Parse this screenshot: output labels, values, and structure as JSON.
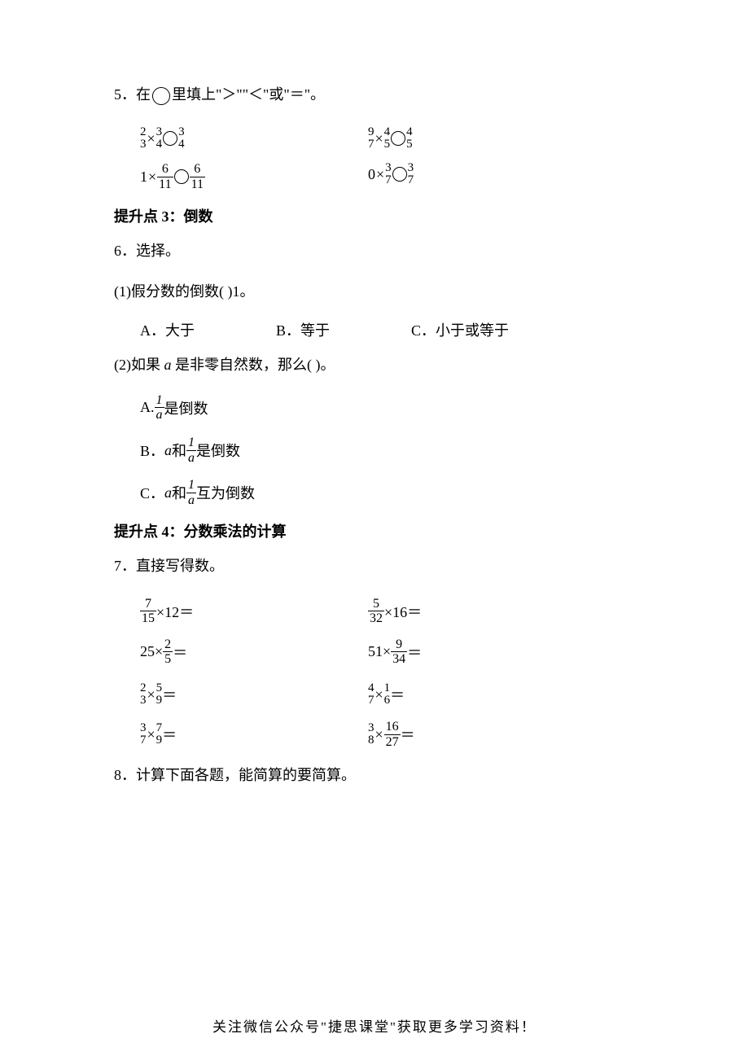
{
  "q5": {
    "number": "5．",
    "text": "在",
    "text2": "里填上\"＞\"\"＜\"或\"＝\"。",
    "items": [
      {
        "left_num": "2",
        "left_den": "3",
        "op": "×",
        "mid_num": "3",
        "mid_den": "4",
        "right_num": "3",
        "right_den": "4"
      },
      {
        "left_num": "9",
        "left_den": "7",
        "op": "×",
        "mid_num": "4",
        "mid_den": "5",
        "right_num": "4",
        "right_den": "5"
      },
      {
        "left_whole": "1",
        "op": "×",
        "mid_num": "6",
        "mid_den": "11",
        "right_num": "6",
        "right_den": "11"
      },
      {
        "left_whole": "0",
        "op": "×",
        "mid_num": "3",
        "mid_den": "7",
        "right_num": "3",
        "right_den": "7"
      }
    ]
  },
  "section3": {
    "title": "提升点 3：倒数"
  },
  "q6": {
    "number": "6．",
    "text": "选择。",
    "sub1": {
      "label": "(1)",
      "text": "假分数的倒数(      )1。",
      "optA": "A．大于",
      "optB": "B．等于",
      "optC": "C．小于或等于"
    },
    "sub2": {
      "label": "(2)",
      "text1": "如果 ",
      "var": "a",
      "text2": " 是非零自然数，那么(      )。",
      "optA_pre": "A.",
      "optA_num": "1",
      "optA_den": "a",
      "optA_post": "是倒数",
      "optB_pre": "B．",
      "optB_var": "a",
      "optB_mid": " 和",
      "optB_num": "1",
      "optB_den": "a",
      "optB_post": "是倒数",
      "optC_pre": "C．",
      "optC_var": "a",
      "optC_mid": " 和",
      "optC_num": "1",
      "optC_den": "a",
      "optC_post": "互为倒数"
    }
  },
  "section4": {
    "title": "提升点 4：分数乘法的计算"
  },
  "q7": {
    "number": "7．",
    "text": "直接写得数。",
    "items": [
      {
        "a_num": "7",
        "a_den": "15",
        "a_op": "×12＝",
        "b_num": "5",
        "b_den": "32",
        "b_op": "×16＝"
      },
      {
        "a_whole": "25×",
        "a_num": "2",
        "a_den": "5",
        "a_op": "＝",
        "b_whole": "51×",
        "b_num": "9",
        "b_den": "34",
        "b_op": "＝"
      },
      {
        "a_num": "2",
        "a_den": "3",
        "a_mid": "×",
        "a2_num": "5",
        "a2_den": "9",
        "a_op": "＝",
        "b_num": "4",
        "b_den": "7",
        "b_mid": "×",
        "b2_num": "1",
        "b2_den": "6",
        "b_op": "＝"
      },
      {
        "a_num": "3",
        "a_den": "7",
        "a_mid": "×",
        "a2_num": "7",
        "a2_den": "9",
        "a_op": "＝",
        "b_num": "3",
        "b_den": "8",
        "b_mid": "×",
        "b2_num": "16",
        "b2_den": "27",
        "b_op": "＝"
      }
    ]
  },
  "q8": {
    "number": "8．",
    "text": "计算下面各题，能简算的要简算。"
  },
  "footer": "关注微信公众号\"捷思课堂\"获取更多学习资料！"
}
